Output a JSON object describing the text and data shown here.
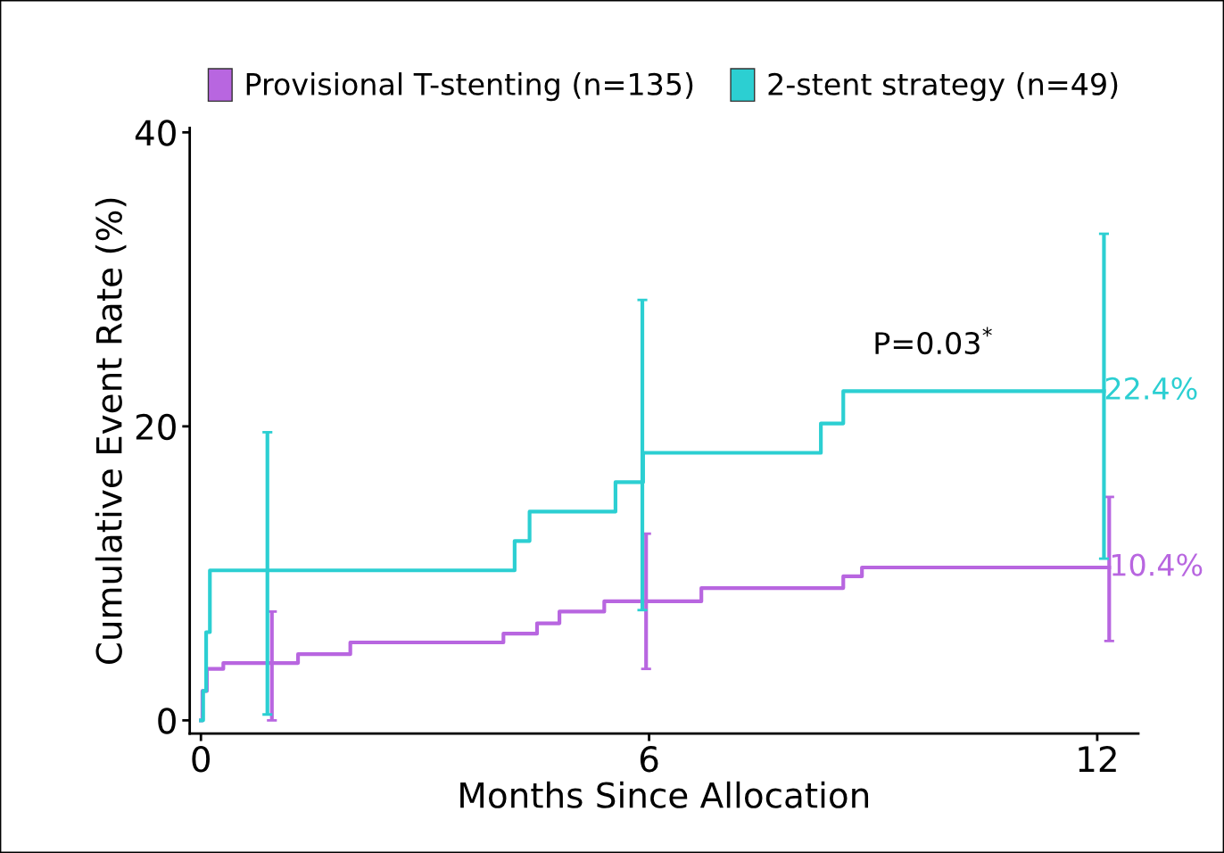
{
  "chart_data": {
    "type": "step",
    "xlabel": "Months Since Allocation",
    "ylabel": "Cumulative Event Rate (%)",
    "xlim": [
      -0.15,
      12.55
    ],
    "ylim": [
      -0.9,
      40.3
    ],
    "xticks": [
      0,
      6,
      12
    ],
    "yticks": [
      0,
      20,
      40
    ],
    "legend": "top",
    "grid": false,
    "line_style": "solid",
    "marker": "none",
    "series": [
      {
        "name": "Provisional T-stenting (n=135)",
        "color": "#b866e0",
        "x": [
          0,
          0.02,
          0.08,
          0.3,
          0.95,
          1.3,
          2.0,
          4.05,
          4.5,
          4.8,
          5.4,
          5.96,
          6.7,
          8.6,
          8.85,
          12.16
        ],
        "values": [
          0,
          2.0,
          3.5,
          3.9,
          3.9,
          4.5,
          5.3,
          5.9,
          6.6,
          7.4,
          8.1,
          8.1,
          9.0,
          9.8,
          10.4,
          10.4
        ],
        "errors": [
          null,
          null,
          null,
          null,
          [
            0,
            7.4
          ],
          null,
          null,
          null,
          null,
          null,
          null,
          [
            3.5,
            12.7
          ],
          null,
          null,
          null,
          [
            5.4,
            15.2
          ]
        ]
      },
      {
        "name": "2-stent strategy (n=49)",
        "color": "#2ccfd2",
        "x": [
          0,
          0.03,
          0.07,
          0.12,
          0.89,
          4.2,
          4.4,
          5.55,
          5.91,
          5.92,
          8.3,
          8.6,
          12.09
        ],
        "values": [
          0,
          2.0,
          6.0,
          10.2,
          10.2,
          12.2,
          14.2,
          16.2,
          16.2,
          18.2,
          20.2,
          22.4,
          22.4
        ],
        "errors": [
          null,
          null,
          null,
          null,
          [
            0.4,
            19.6
          ],
          null,
          null,
          null,
          [
            7.5,
            28.6
          ],
          null,
          null,
          null,
          [
            11.0,
            33.1
          ]
        ]
      }
    ],
    "annotations": [
      {
        "text": "22.4%",
        "x": 12.09,
        "y": 22.4
      },
      {
        "text": "10.4%",
        "x": 12.16,
        "y": 10.4
      },
      "P=0.03$^{*}$"
    ]
  }
}
